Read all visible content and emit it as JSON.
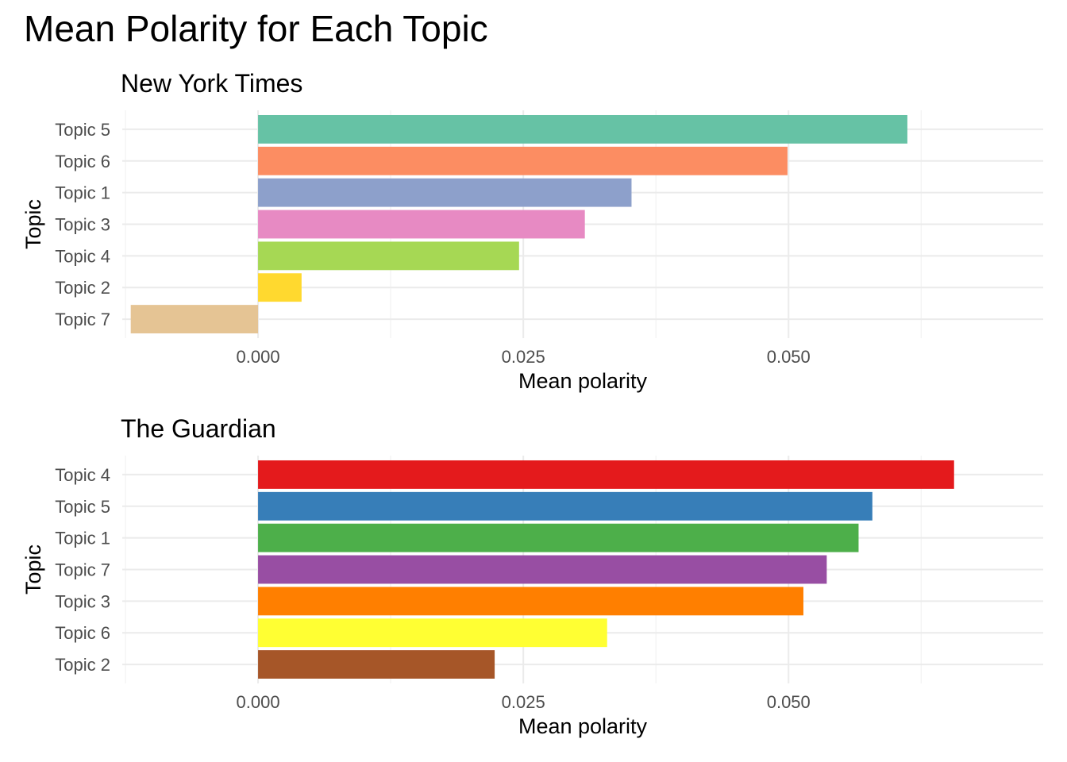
{
  "title": "Mean Polarity for Each Topic",
  "chart_data": [
    {
      "type": "bar",
      "orientation": "horizontal",
      "title": "New York Times",
      "xlabel": "Mean polarity",
      "ylabel": "Topic",
      "xlim": [
        -0.0128,
        0.074
      ],
      "x_ticks": [
        0.0,
        0.025,
        0.05
      ],
      "x_tick_labels": [
        "0.000",
        "0.025",
        "0.050"
      ],
      "grid": true,
      "categories": [
        "Topic 5",
        "Topic 6",
        "Topic 1",
        "Topic 3",
        "Topic 4",
        "Topic 2",
        "Topic 7"
      ],
      "values": [
        0.0612,
        0.0499,
        0.0352,
        0.0308,
        0.0246,
        0.0041,
        -0.012
      ],
      "colors": [
        "#66C2A5",
        "#FC8D62",
        "#8DA0CB",
        "#E78AC3",
        "#A6D854",
        "#FFD92F",
        "#E5C494"
      ]
    },
    {
      "type": "bar",
      "orientation": "horizontal",
      "title": "The Guardian",
      "xlabel": "Mean polarity",
      "ylabel": "Topic",
      "xlim": [
        -0.0128,
        0.074
      ],
      "x_ticks": [
        0.0,
        0.025,
        0.05
      ],
      "x_tick_labels": [
        "0.000",
        "0.025",
        "0.050"
      ],
      "grid": true,
      "categories": [
        "Topic 4",
        "Topic 5",
        "Topic 1",
        "Topic 7",
        "Topic 3",
        "Topic 6",
        "Topic 2"
      ],
      "values": [
        0.0656,
        0.0579,
        0.0566,
        0.0536,
        0.0514,
        0.0329,
        0.0223
      ],
      "colors": [
        "#E41A1C",
        "#377EB8",
        "#4DAF4A",
        "#984EA3",
        "#FF7F00",
        "#FFFF33",
        "#A65628"
      ]
    }
  ]
}
